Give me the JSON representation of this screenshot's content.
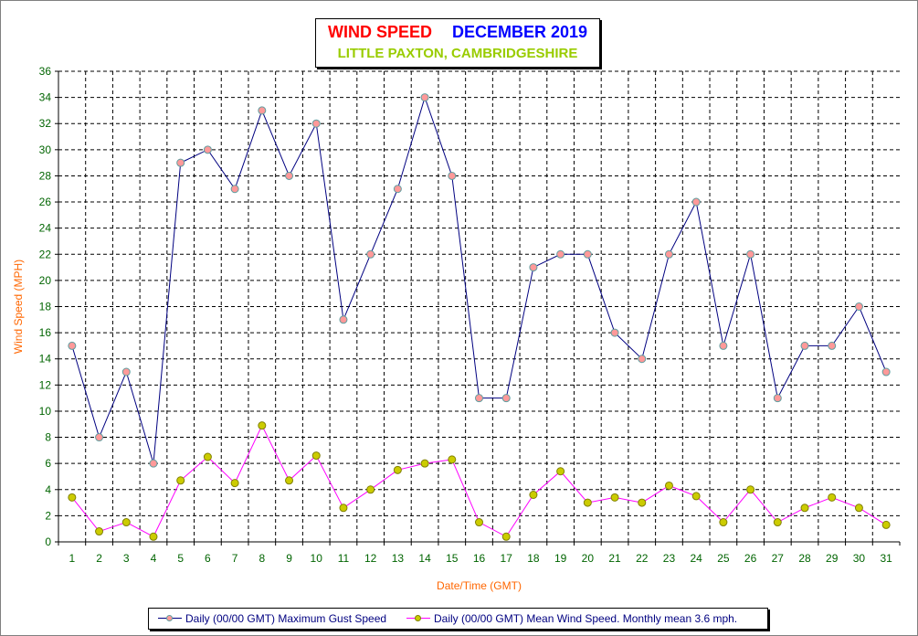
{
  "chart_data": {
    "type": "line",
    "title": "WIND SPEED",
    "title_period": "DECEMBER 2019",
    "subtitle": "LITTLE PAXTON, CAMBRIDGESHIRE",
    "xlabel": "Date/Time (GMT)",
    "ylabel": "Wind Speed (MPH)",
    "ylim": [
      0,
      36
    ],
    "y_ticks": [
      0,
      2,
      4,
      6,
      8,
      10,
      12,
      14,
      16,
      18,
      20,
      22,
      24,
      26,
      28,
      30,
      32,
      34,
      36
    ],
    "grid": true,
    "legend_position": "bottom",
    "categories": [
      "1",
      "2",
      "3",
      "4",
      "5",
      "6",
      "7",
      "8",
      "9",
      "10",
      "11",
      "12",
      "13",
      "14",
      "15",
      "16",
      "17",
      "18",
      "19",
      "20",
      "21",
      "22",
      "23",
      "24",
      "25",
      "26",
      "27",
      "28",
      "29",
      "30",
      "31"
    ],
    "series": [
      {
        "name": "Daily (00/00 GMT) Maximum Gust Speed",
        "line_color": "#000080",
        "marker_color": "#ff9999",
        "values": [
          15,
          8,
          13,
          6,
          29,
          30,
          27,
          33,
          28,
          32,
          17,
          22,
          27,
          34,
          28,
          11,
          11,
          21,
          22,
          22,
          16,
          14,
          22,
          26,
          15,
          22,
          11,
          15,
          15,
          18,
          13
        ]
      },
      {
        "name": "Daily (00/00 GMT) Mean Wind Speed. Monthly mean 3.6 mph.",
        "line_color": "#ff00ff",
        "marker_color": "#cccc00",
        "values": [
          3.4,
          0.8,
          1.5,
          0.4,
          4.7,
          6.5,
          4.5,
          8.9,
          4.7,
          6.6,
          2.6,
          4.0,
          5.5,
          6.0,
          6.3,
          1.5,
          0.4,
          3.6,
          5.4,
          3.0,
          3.4,
          3.0,
          4.3,
          3.5,
          1.5,
          4.0,
          1.5,
          2.6,
          3.4,
          2.6,
          1.3
        ]
      }
    ]
  }
}
